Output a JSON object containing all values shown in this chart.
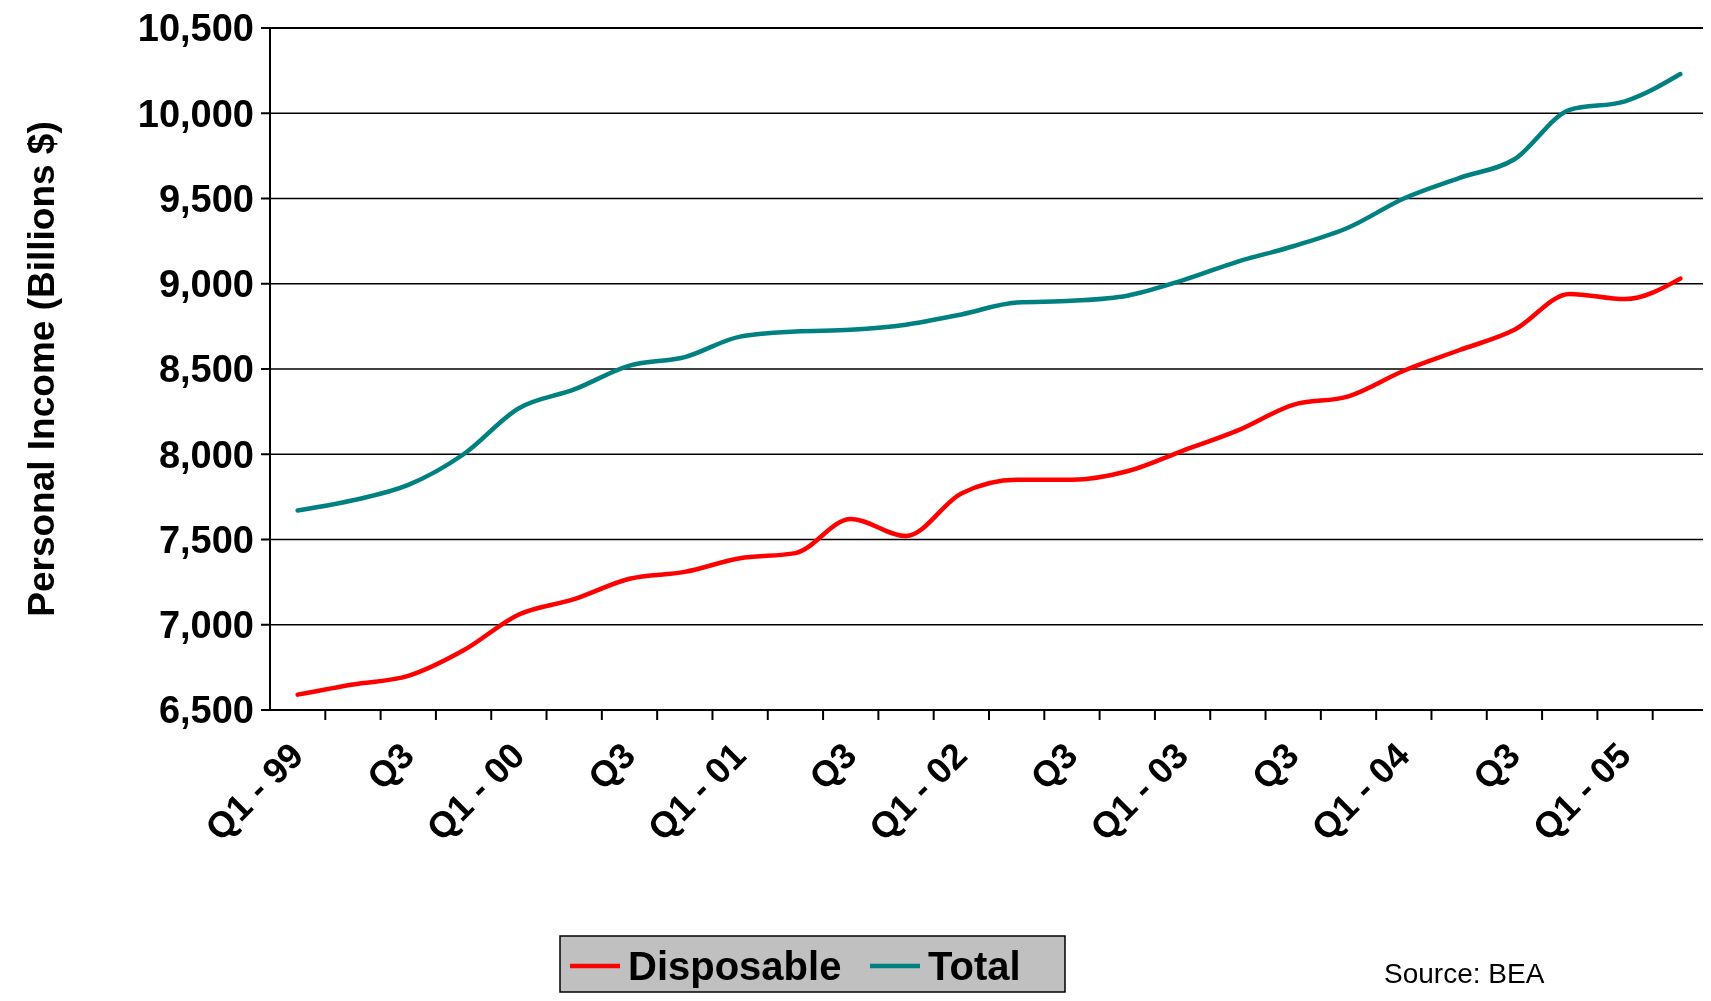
{
  "chart_data": {
    "type": "line",
    "ylabel": "Personal Income (Billions $)",
    "categories": [
      "Q1 - 99",
      null,
      "Q3",
      null,
      "Q1 - 00",
      null,
      "Q3",
      null,
      "Q1 - 01",
      null,
      "Q3",
      null,
      "Q1 - 02",
      null,
      "Q3",
      null,
      "Q1 - 03",
      null,
      "Q3",
      null,
      "Q1 - 04",
      null,
      "Q3",
      null,
      "Q1 - 05",
      null
    ],
    "ylim": [
      6500,
      10500
    ],
    "yticks": [
      {
        "value": 6500,
        "label": "6,500"
      },
      {
        "value": 7000,
        "label": "7,000"
      },
      {
        "value": 7500,
        "label": "7,500"
      },
      {
        "value": 8000,
        "label": "8,000"
      },
      {
        "value": 8500,
        "label": "8,500"
      },
      {
        "value": 9000,
        "label": "9,000"
      },
      {
        "value": 9500,
        "label": "9,500"
      },
      {
        "value": 10000,
        "label": "10,000"
      },
      {
        "value": 10500,
        "label": "10,500"
      }
    ],
    "grid": "y",
    "legend": "bottom",
    "marker": "none",
    "line_style": "solid",
    "annotations": [
      "Source: BEA"
    ],
    "series": [
      {
        "name": "Disposable",
        "color": "#ff0000",
        "values": [
          6590,
          6650,
          6700,
          6850,
          7060,
          7150,
          7270,
          7310,
          7390,
          7420,
          7620,
          7520,
          7770,
          7850,
          7850,
          7900,
          8020,
          8140,
          8290,
          8340,
          8490,
          8610,
          8730,
          8940,
          8910,
          9030
        ]
      },
      {
        "name": "Total",
        "color": "#008080",
        "values": [
          7670,
          7730,
          7820,
          8000,
          8270,
          8380,
          8520,
          8570,
          8690,
          8720,
          8730,
          8760,
          8820,
          8890,
          8900,
          8930,
          9020,
          9130,
          9220,
          9330,
          9500,
          9620,
          9730,
          10020,
          10070,
          10230
        ]
      }
    ]
  }
}
